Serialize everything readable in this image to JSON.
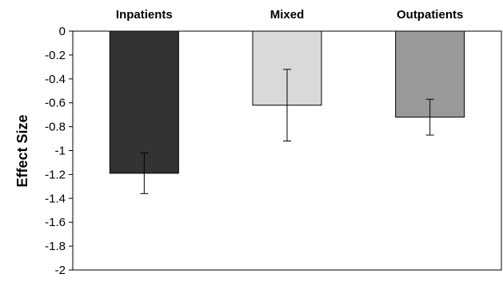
{
  "chart_data": {
    "type": "bar",
    "title": "",
    "xlabel": "",
    "ylabel": "Effect Size",
    "categories": [
      "Inpatients",
      "Mixed",
      "Outpatients"
    ],
    "values": [
      -1.19,
      -0.62,
      -0.72
    ],
    "error_low": [
      -1.36,
      -0.92,
      -0.87
    ],
    "error_high": [
      -1.02,
      -0.32,
      -0.57
    ],
    "ylim": [
      -2,
      0
    ],
    "yticks": [
      {
        "value": 0,
        "label": "0"
      },
      {
        "value": -0.2,
        "label": "-0.2"
      },
      {
        "value": -0.4,
        "label": "-0.4"
      },
      {
        "value": -0.6,
        "label": "-0.6"
      },
      {
        "value": -0.8,
        "label": "-0.8"
      },
      {
        "value": -1,
        "label": "-1"
      },
      {
        "value": -1.2,
        "label": "-1.2"
      },
      {
        "value": -1.4,
        "label": "-1.4"
      },
      {
        "value": -1.6,
        "label": "-1.6"
      },
      {
        "value": -1.8,
        "label": "-1.8"
      },
      {
        "value": -2,
        "label": "-2"
      }
    ],
    "category_axis_position": "top",
    "grid": false,
    "legend": "none",
    "colors": [
      "#333333",
      "#d9d9d9",
      "#999999"
    ],
    "error_bar_color": "#000000"
  }
}
